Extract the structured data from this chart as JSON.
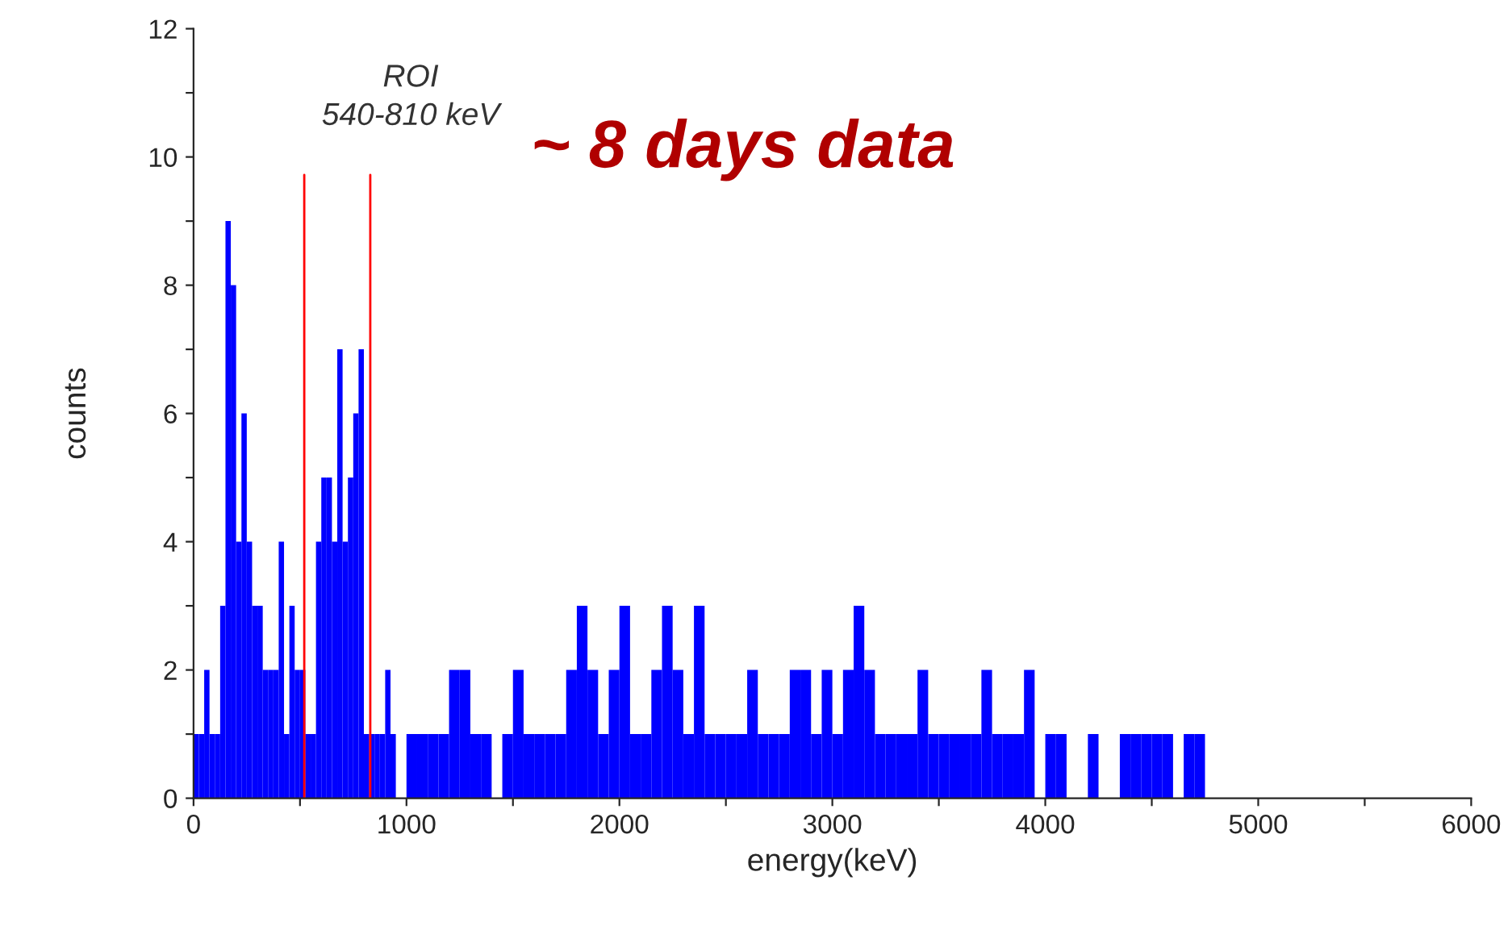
{
  "chart_data": {
    "type": "histogram",
    "xlabel": "energy(keV)",
    "ylabel": "counts",
    "annotations": [
      "ROI\n540-810 keV",
      "~ 8 days data"
    ],
    "bins": [
      0,
      25,
      50,
      75,
      100,
      125,
      150,
      175,
      200,
      225,
      250,
      275,
      300,
      325,
      350,
      375,
      400,
      425,
      450,
      475,
      500,
      525,
      550,
      575,
      600,
      625,
      650,
      675,
      700,
      725,
      750,
      775,
      800,
      825,
      850,
      875,
      900,
      925,
      950,
      1000,
      1050,
      1100,
      1150,
      1200,
      1250,
      1300,
      1350,
      1400,
      1450,
      1500,
      1550,
      1600,
      1650,
      1700,
      1750,
      1800,
      1850,
      1900,
      1950,
      2000,
      2050,
      2100,
      2150,
      2200,
      2250,
      2300,
      2350,
      2400,
      2450,
      2500,
      2550,
      2600,
      2650,
      2700,
      2750,
      2800,
      2850,
      2900,
      2950,
      3000,
      3050,
      3100,
      3150,
      3200,
      3250,
      3300,
      3350,
      3400,
      3450,
      3500,
      3550,
      3600,
      3650,
      3700,
      3750,
      3800,
      3850,
      3900,
      3950,
      4000,
      4050,
      4100,
      4200,
      4250,
      4350,
      4400,
      4450,
      4500,
      4550,
      4600,
      4650,
      4700,
      4750
    ],
    "values": [
      1,
      1,
      2,
      1,
      1,
      3,
      9,
      8,
      4,
      6,
      4,
      3,
      3,
      2,
      2,
      2,
      4,
      1,
      3,
      2,
      2,
      1,
      1,
      4,
      5,
      5,
      4,
      7,
      4,
      5,
      6,
      7,
      1,
      1,
      1,
      1,
      2,
      1,
      0,
      1,
      1,
      1,
      1,
      2,
      2,
      1,
      1,
      0,
      1,
      2,
      1,
      1,
      1,
      1,
      2,
      3,
      2,
      1,
      2,
      3,
      1,
      1,
      2,
      3,
      2,
      1,
      3,
      1,
      1,
      1,
      1,
      2,
      1,
      1,
      1,
      2,
      2,
      1,
      2,
      1,
      2,
      3,
      2,
      1,
      1,
      1,
      1,
      2,
      1,
      1,
      1,
      1,
      1,
      2,
      1,
      1,
      1,
      2,
      0,
      1,
      1,
      0,
      1,
      0,
      1,
      1,
      1,
      1,
      1,
      0,
      1,
      1
    ],
    "color": "#0000ff",
    "ref_lines": [
      {
        "axis": "x",
        "value": 520,
        "label": null,
        "color": "#ff0000"
      },
      {
        "axis": "x",
        "value": 830,
        "label": null,
        "color": "#ff0000"
      }
    ],
    "xlim": [
      0,
      6000
    ],
    "ylim": [
      0,
      12
    ],
    "xticks": [
      0,
      {
        "value": 500,
        "label": null
      },
      1000,
      {
        "value": 1500,
        "label": null
      },
      2000,
      {
        "value": 2500,
        "label": null
      },
      3000,
      {
        "value": 3500,
        "label": null
      },
      4000,
      {
        "value": 4500,
        "label": null
      },
      5000,
      {
        "value": 5500,
        "label": null
      },
      6000
    ],
    "yticks": [
      0,
      {
        "value": 1,
        "label": null
      },
      2,
      {
        "value": 3,
        "label": null
      },
      4,
      {
        "value": 5,
        "label": null
      },
      6,
      {
        "value": 7,
        "label": null
      },
      8,
      {
        "value": 9,
        "label": null
      },
      10,
      {
        "value": 11,
        "label": null
      },
      12
    ],
    "grid": false
  }
}
